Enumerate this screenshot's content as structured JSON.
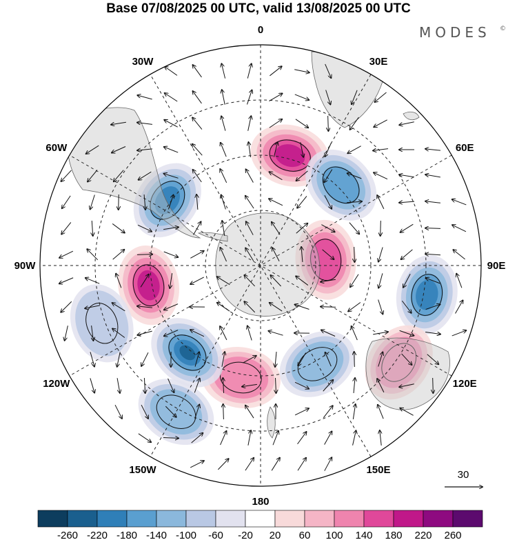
{
  "header": {
    "title": "Base 07/08/2025 00 UTC, valid 13/08/2025 00 UTC",
    "brand": "MODES",
    "brand_mark": "©"
  },
  "map": {
    "projection": "south-polar-stereographic",
    "longitude_labels": [
      {
        "id": "0",
        "text": "0"
      },
      {
        "id": "30E",
        "text": "30E"
      },
      {
        "id": "60E",
        "text": "60E"
      },
      {
        "id": "90E",
        "text": "90E"
      },
      {
        "id": "120E",
        "text": "120E"
      },
      {
        "id": "150E",
        "text": "150E"
      },
      {
        "id": "180",
        "text": "180"
      },
      {
        "id": "150W",
        "text": "150W"
      },
      {
        "id": "120W",
        "text": "120W"
      },
      {
        "id": "90W",
        "text": "90W"
      },
      {
        "id": "60W",
        "text": "60W"
      },
      {
        "id": "30W",
        "text": "30W"
      }
    ],
    "reference_vector": {
      "label": "30"
    },
    "anomaly_centers": [
      {
        "sign": "positive",
        "intensity": 210,
        "lon": 15,
        "lat_index": 1
      },
      {
        "sign": "negative",
        "intensity": -140,
        "lon": 45,
        "lat_index": 1
      },
      {
        "sign": "negative",
        "intensity": -180,
        "lon": -55,
        "lat_index": 1
      },
      {
        "sign": "positive",
        "intensity": 150,
        "lon": 85,
        "lat_index": 0
      },
      {
        "sign": "negative",
        "intensity": -190,
        "lon": 100,
        "lat_index": 2
      },
      {
        "sign": "positive",
        "intensity": 130,
        "lon": 125,
        "lat_index": 2
      },
      {
        "sign": "negative",
        "intensity": -110,
        "lon": 150,
        "lat_index": 1
      },
      {
        "sign": "positive",
        "intensity": 120,
        "lon": -170,
        "lat_index": 1
      },
      {
        "sign": "negative",
        "intensity": -220,
        "lon": -140,
        "lat_index": 1
      },
      {
        "sign": "negative",
        "intensity": -110,
        "lon": -150,
        "lat_index": 2
      },
      {
        "sign": "positive",
        "intensity": 200,
        "lon": -100,
        "lat_index": 1
      },
      {
        "sign": "negative",
        "intensity": -90,
        "lon": -110,
        "lat_index": 2
      }
    ]
  },
  "colorbar": {
    "ticks": [
      "-260",
      "-220",
      "-180",
      "-140",
      "-100",
      "-60",
      "-20",
      "20",
      "60",
      "100",
      "140",
      "180",
      "220",
      "260"
    ],
    "colors": [
      "#0d3d5e",
      "#1a5f8e",
      "#2f7fb8",
      "#5a9fd0",
      "#8bb8dc",
      "#b9c8e4",
      "#e2e2ef",
      "#ffffff",
      "#f8dada",
      "#f5b5c6",
      "#ef84ae",
      "#e0489a",
      "#c01889",
      "#8e0a80",
      "#5c0a6e"
    ]
  }
}
